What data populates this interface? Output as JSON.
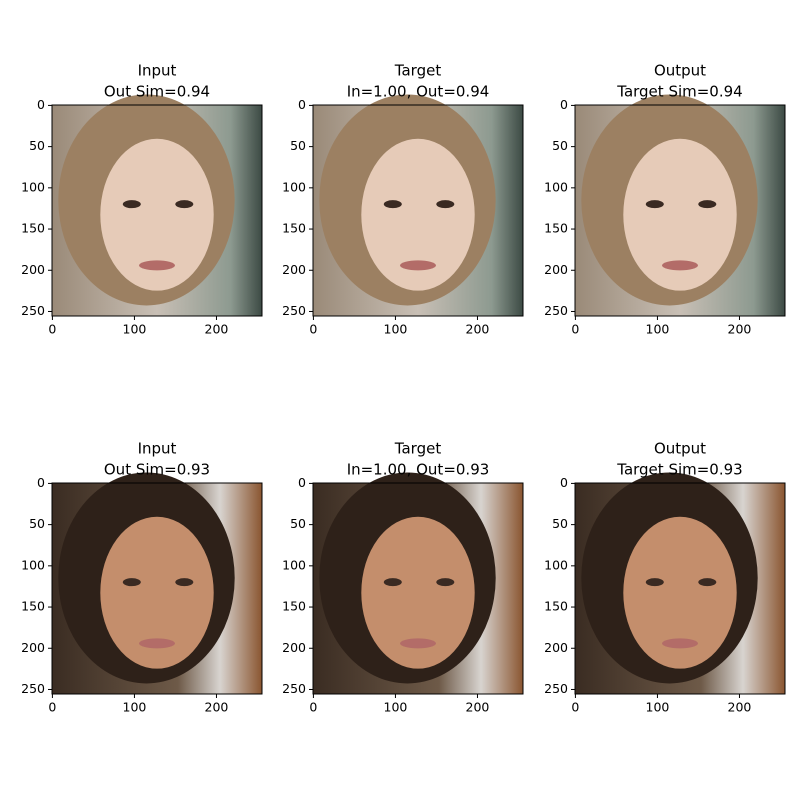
{
  "chart_data": [
    {
      "type": "image",
      "title": "Input",
      "subtitle": "Out Sim=0.94",
      "xlim": [
        -0.5,
        255.5
      ],
      "ylim": [
        255.5,
        -0.5
      ],
      "xticks": [
        0,
        100,
        200
      ],
      "yticks": [
        0,
        50,
        100,
        150,
        200,
        250
      ]
    },
    {
      "type": "image",
      "title": "Target",
      "subtitle": "In=1.00, Out=0.94",
      "xlim": [
        -0.5,
        255.5
      ],
      "ylim": [
        255.5,
        -0.5
      ],
      "xticks": [
        0,
        100,
        200
      ],
      "yticks": [
        0,
        50,
        100,
        150,
        200,
        250
      ]
    },
    {
      "type": "image",
      "title": "Output",
      "subtitle": "Target Sim=0.94",
      "xlim": [
        -0.5,
        255.5
      ],
      "ylim": [
        255.5,
        -0.5
      ],
      "xticks": [
        0,
        100,
        200
      ],
      "yticks": [
        0,
        50,
        100,
        150,
        200,
        250
      ]
    },
    {
      "type": "image",
      "title": "Input",
      "subtitle": "Out Sim=0.93",
      "xlim": [
        -0.5,
        255.5
      ],
      "ylim": [
        255.5,
        -0.5
      ],
      "xticks": [
        0,
        100,
        200
      ],
      "yticks": [
        0,
        50,
        100,
        150,
        200,
        250
      ]
    },
    {
      "type": "image",
      "title": "Target",
      "subtitle": "In=1.00, Out=0.93",
      "xlim": [
        -0.5,
        255.5
      ],
      "ylim": [
        255.5,
        -0.5
      ],
      "xticks": [
        0,
        100,
        200
      ],
      "yticks": [
        0,
        50,
        100,
        150,
        200,
        250
      ]
    },
    {
      "type": "image",
      "title": "Output",
      "subtitle": "Target Sim=0.93",
      "xlim": [
        -0.5,
        255.5
      ],
      "ylim": [
        255.5,
        -0.5
      ],
      "xticks": [
        0,
        100,
        200
      ],
      "yticks": [
        0,
        50,
        100,
        150,
        200,
        250
      ]
    }
  ]
}
